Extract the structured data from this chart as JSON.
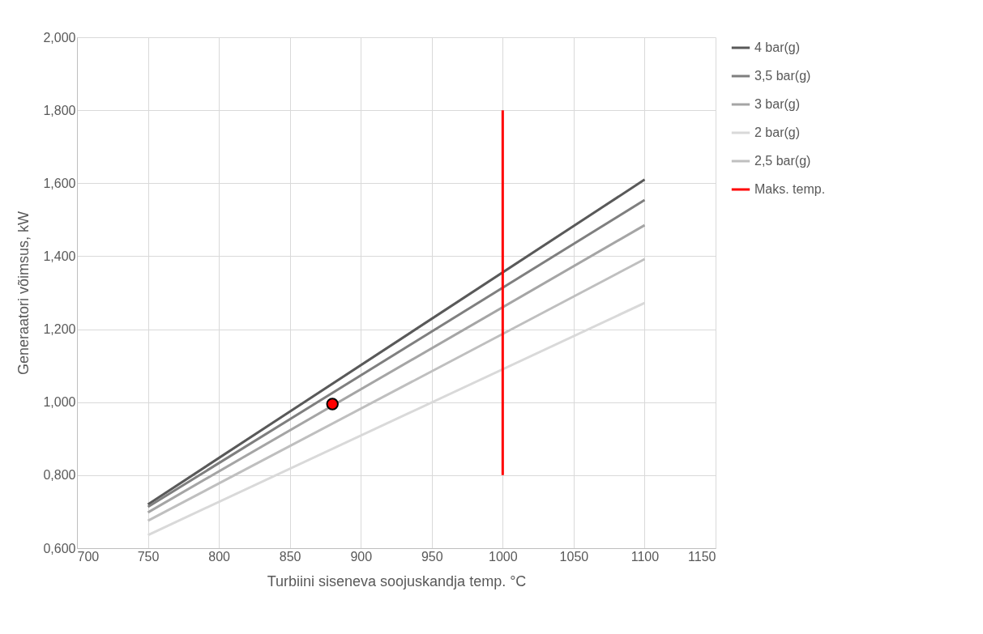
{
  "chart_data": {
    "type": "line",
    "xlabel": "Turbiini siseneva soojuskandja temp. °C",
    "ylabel": "Generaatori võimsus, kW",
    "xlim": [
      700,
      1150
    ],
    "xticks": [
      700,
      750,
      800,
      850,
      900,
      950,
      1000,
      1050,
      1100,
      1150
    ],
    "ylim": [
      0.6,
      2.0
    ],
    "yticks": [
      {
        "value": 0.6,
        "label": "0,600"
      },
      {
        "value": 0.8,
        "label": "0,800"
      },
      {
        "value": 1.0,
        "label": "1,000"
      },
      {
        "value": 1.2,
        "label": "1,200"
      },
      {
        "value": 1.4,
        "label": "1,400"
      },
      {
        "value": 1.6,
        "label": "1,600"
      },
      {
        "value": 1.8,
        "label": "1,800"
      },
      {
        "value": 2.0,
        "label": "2,000"
      }
    ],
    "grid": true,
    "legend": "right",
    "marker": "none",
    "line_style": "solid",
    "series": [
      {
        "name": "4 bar(g)",
        "color": "#595959",
        "x": [
          750,
          1100
        ],
        "values": [
          0.72,
          1.61
        ]
      },
      {
        "name": "3,5 bar(g)",
        "color": "#7f7f7f",
        "x": [
          750,
          1100
        ],
        "values": [
          0.713,
          1.554
        ]
      },
      {
        "name": "3 bar(g)",
        "color": "#a5a5a5",
        "x": [
          750,
          1100
        ],
        "values": [
          0.698,
          1.485
        ]
      },
      {
        "name": "2 bar(g)",
        "color": "#d9d9d9",
        "x": [
          750,
          1100
        ],
        "values": [
          0.636,
          1.272
        ]
      },
      {
        "name": "2,5 bar(g)",
        "color": "#bfbfbf",
        "x": [
          750,
          1100
        ],
        "values": [
          0.675,
          1.392
        ]
      },
      {
        "name": "Maks. temp.",
        "color": "#ff0000",
        "x": [
          1000,
          1000
        ],
        "values": [
          0.8,
          1.8
        ]
      },
      {
        "type": "scatter",
        "marker": "circle",
        "color": "#ff0000",
        "x": [
          880
        ],
        "values": [
          0.995
        ]
      }
    ]
  }
}
